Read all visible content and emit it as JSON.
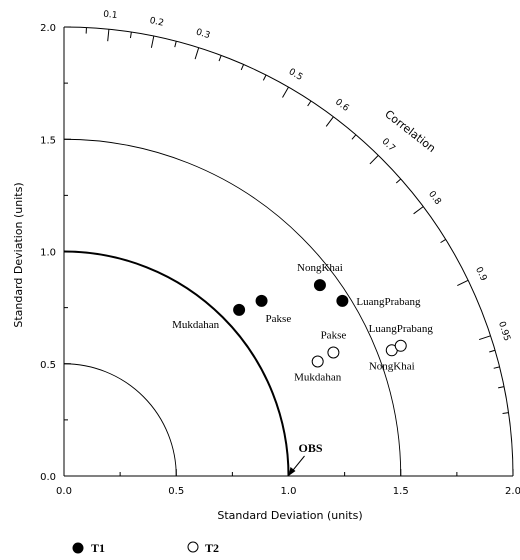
{
  "chart_data": {
    "type": "taylor-diagram",
    "xlabel": "Standard Deviation (units)",
    "ylabel": "Standard Deviation (units)",
    "correlation_label": "Correlation",
    "std_range": [
      0,
      2.0
    ],
    "std_ticks": [
      "0.0",
      "0.5",
      "1.0",
      "1.5",
      "2.0"
    ],
    "std_tick_values": [
      0,
      0.5,
      1.0,
      1.5,
      2.0
    ],
    "correlation_ticks": [
      {
        "value": 0.1,
        "label": "0.1"
      },
      {
        "value": 0.2,
        "label": "0.2"
      },
      {
        "value": 0.3,
        "label": "0.3"
      },
      {
        "value": 0.5,
        "label": "0.5"
      },
      {
        "value": 0.6,
        "label": "0.6"
      },
      {
        "value": 0.7,
        "label": "0.7"
      },
      {
        "value": 0.8,
        "label": "0.8"
      },
      {
        "value": 0.9,
        "label": "0.9"
      },
      {
        "value": 0.95,
        "label": "0.95"
      }
    ],
    "reference": {
      "label": "OBS",
      "std": 1.0
    },
    "arcs": [
      0.5,
      1.0,
      1.5
    ],
    "series": [
      {
        "name": "T1",
        "marker": "filled-circle",
        "points": [
          {
            "station": "Mukdahan",
            "x": 0.78,
            "y": 0.74,
            "label_pos": "left-below"
          },
          {
            "station": "Pakse",
            "x": 0.88,
            "y": 0.78,
            "label_pos": "below-right"
          },
          {
            "station": "NongKhai",
            "x": 1.14,
            "y": 0.85,
            "label_pos": "above"
          },
          {
            "station": "LuangPrabang",
            "x": 1.24,
            "y": 0.78,
            "label_pos": "right"
          }
        ]
      },
      {
        "name": "T2",
        "marker": "open-circle",
        "points": [
          {
            "station": "Mukdahan",
            "x": 1.13,
            "y": 0.51,
            "label_pos": "below"
          },
          {
            "station": "Pakse",
            "x": 1.2,
            "y": 0.55,
            "label_pos": "above"
          },
          {
            "station": "NongKhai",
            "x": 1.46,
            "y": 0.56,
            "label_pos": "below"
          },
          {
            "station": "LuangPrabang",
            "x": 1.5,
            "y": 0.58,
            "label_pos": "above"
          }
        ]
      }
    ]
  }
}
